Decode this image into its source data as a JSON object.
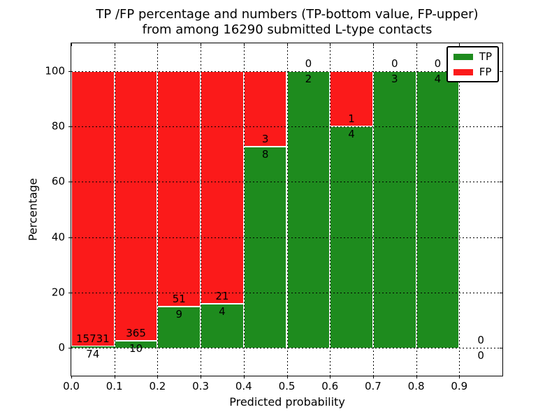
{
  "title": {
    "line1": "TP /FP percentage and numbers (TP-bottom value, FP-upper)",
    "line2": "from among 16290 submitted L-type contacts"
  },
  "chart_data": {
    "type": "bar",
    "stacked": true,
    "bar_mode": "percentage-of-bin-total",
    "title": "TP /FP percentage and numbers (TP-bottom value, FP-upper) from among 16290 submitted L-type contacts",
    "xlabel": "Predicted probability",
    "ylabel": "Percentage",
    "xlim": [
      0.0,
      1.0
    ],
    "ylim": [
      -10,
      110
    ],
    "xticks": [
      "0.0",
      "0.1",
      "0.2",
      "0.3",
      "0.4",
      "0.5",
      "0.6",
      "0.7",
      "0.8",
      "0.9"
    ],
    "yticks": [
      0,
      20,
      40,
      60,
      80,
      100
    ],
    "grid": "dotted",
    "bin_width": 0.1,
    "bins": [
      {
        "x_start": 0.0,
        "tp": 74,
        "fp": 15731
      },
      {
        "x_start": 0.1,
        "tp": 10,
        "fp": 365
      },
      {
        "x_start": 0.2,
        "tp": 9,
        "fp": 51
      },
      {
        "x_start": 0.3,
        "tp": 4,
        "fp": 21
      },
      {
        "x_start": 0.4,
        "tp": 8,
        "fp": 3
      },
      {
        "x_start": 0.5,
        "tp": 2,
        "fp": 0
      },
      {
        "x_start": 0.6,
        "tp": 4,
        "fp": 1
      },
      {
        "x_start": 0.7,
        "tp": 3,
        "fp": 0
      },
      {
        "x_start": 0.8,
        "tp": 4,
        "fp": 0
      },
      {
        "x_start": 0.9,
        "tp": 0,
        "fp": 0
      }
    ],
    "series": [
      {
        "name": "TP",
        "color": "#1e8b1e",
        "values": [
          74,
          10,
          9,
          4,
          8,
          2,
          4,
          3,
          4,
          0
        ]
      },
      {
        "name": "FP",
        "color": "#fb1a1a",
        "values": [
          15731,
          365,
          51,
          21,
          3,
          0,
          1,
          0,
          0,
          0
        ]
      }
    ],
    "colors": {
      "tp": "#1e8b1e",
      "fp": "#fb1a1a",
      "axis": "#000000",
      "background": "#ffffff"
    },
    "legend": {
      "position": "upper right",
      "entries": [
        {
          "label": "TP",
          "color": "#1e8b1e"
        },
        {
          "label": "FP",
          "color": "#fb1a1a"
        }
      ]
    }
  }
}
